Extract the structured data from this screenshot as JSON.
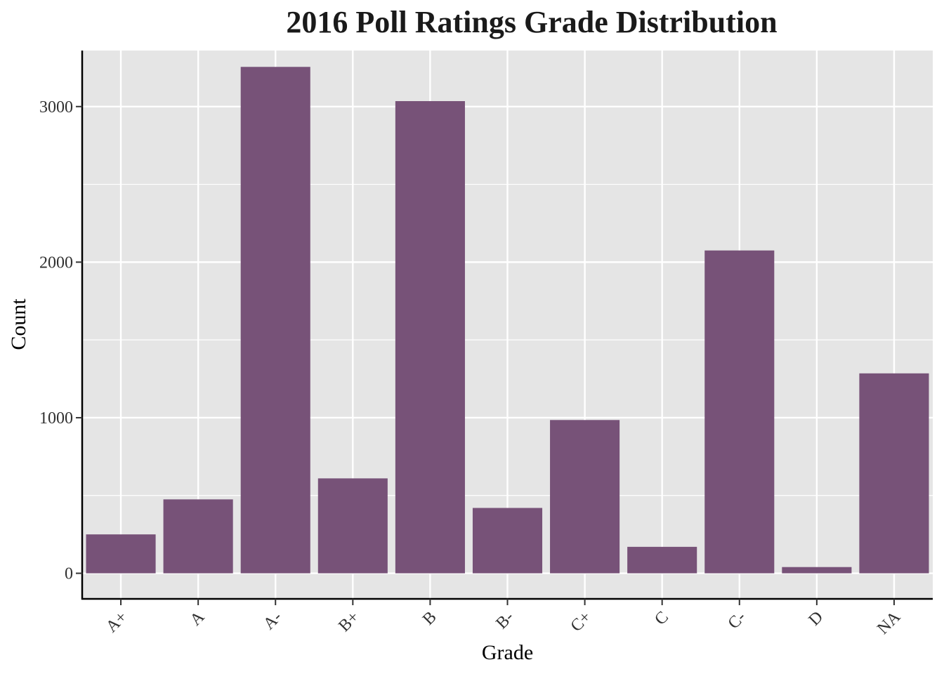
{
  "chart_data": {
    "type": "bar",
    "title": "2016 Poll Ratings Grade Distribution",
    "xlabel": "Grade",
    "ylabel": "Count",
    "categories": [
      "A+",
      "A",
      "A-",
      "B+",
      "B",
      "B-",
      "C+",
      "C",
      "C-",
      "D",
      "NA"
    ],
    "values": [
      250,
      475,
      3255,
      610,
      3035,
      420,
      985,
      170,
      2075,
      40,
      1285
    ],
    "ylim": [
      -160,
      3360
    ],
    "y_ticks": [
      0,
      1000,
      2000,
      3000
    ],
    "y_tick_labels": [
      "0",
      "1000",
      "2000",
      "3000"
    ],
    "grid": true,
    "colors": {
      "bar": "#775278",
      "panel": "#e5e5e5",
      "grid": "#ffffff",
      "axis": "#000000"
    }
  }
}
